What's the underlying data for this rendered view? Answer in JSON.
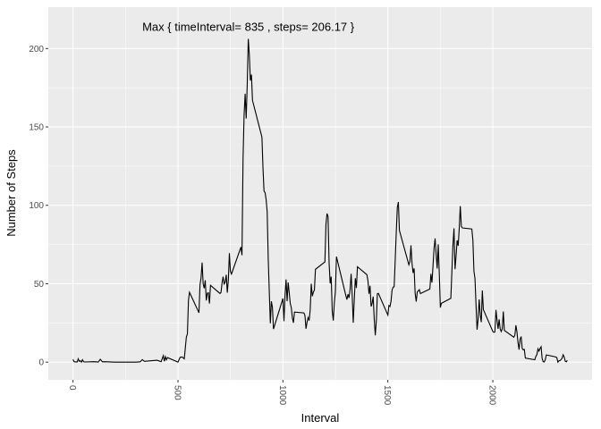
{
  "chart_data": {
    "type": "line",
    "x_label": "Interval",
    "y_label": "Number of Steps",
    "annotation": {
      "text": "Max { timeInterval= 835 , steps= 206.17 }",
      "x": 835,
      "y": 214
    },
    "xlim": [
      -117.75,
      2472.75
    ],
    "ylim": [
      -11.3,
      226.4
    ],
    "xticks": [
      0,
      500,
      1000,
      1500,
      2000
    ],
    "yticks": [
      0,
      50,
      100,
      150,
      200
    ],
    "grid": true,
    "series": [
      {
        "name": "steps",
        "color": "#000000",
        "x": [
          0,
          5,
          10,
          15,
          20,
          25,
          30,
          35,
          40,
          45,
          50,
          55,
          100,
          110,
          120,
          130,
          140,
          150,
          200,
          230,
          300,
          320,
          330,
          340,
          400,
          420,
          430,
          435,
          440,
          445,
          450,
          500,
          510,
          520,
          530,
          540,
          545,
          550,
          555,
          600,
          605,
          610,
          615,
          620,
          625,
          630,
          635,
          640,
          645,
          650,
          655,
          700,
          705,
          710,
          715,
          720,
          725,
          730,
          735,
          740,
          745,
          750,
          755,
          800,
          805,
          810,
          815,
          820,
          825,
          830,
          835,
          840,
          845,
          850,
          855,
          900,
          905,
          910,
          915,
          920,
          925,
          930,
          935,
          940,
          945,
          950,
          955,
          1000,
          1005,
          1010,
          1015,
          1020,
          1025,
          1030,
          1035,
          1040,
          1045,
          1050,
          1055,
          1100,
          1105,
          1110,
          1115,
          1120,
          1125,
          1130,
          1135,
          1140,
          1145,
          1150,
          1155,
          1200,
          1205,
          1210,
          1215,
          1220,
          1225,
          1230,
          1235,
          1240,
          1245,
          1250,
          1255,
          1300,
          1305,
          1310,
          1315,
          1320,
          1325,
          1330,
          1335,
          1340,
          1345,
          1350,
          1355,
          1400,
          1405,
          1410,
          1415,
          1420,
          1425,
          1430,
          1435,
          1440,
          1445,
          1450,
          1455,
          1500,
          1505,
          1510,
          1515,
          1520,
          1525,
          1530,
          1535,
          1540,
          1545,
          1550,
          1555,
          1600,
          1605,
          1610,
          1615,
          1620,
          1625,
          1630,
          1635,
          1640,
          1645,
          1650,
          1655,
          1700,
          1705,
          1710,
          1715,
          1720,
          1725,
          1730,
          1735,
          1740,
          1745,
          1750,
          1755,
          1800,
          1805,
          1810,
          1815,
          1820,
          1825,
          1830,
          1835,
          1840,
          1845,
          1850,
          1855,
          1900,
          1905,
          1910,
          1915,
          1920,
          1925,
          1930,
          1935,
          1940,
          1945,
          1950,
          1955,
          2000,
          2005,
          2010,
          2015,
          2020,
          2025,
          2030,
          2035,
          2040,
          2045,
          2050,
          2055,
          2100,
          2105,
          2110,
          2115,
          2120,
          2125,
          2130,
          2135,
          2140,
          2145,
          2150,
          2155,
          2200,
          2205,
          2210,
          2215,
          2220,
          2225,
          2230,
          2235,
          2240,
          2245,
          2250,
          2255,
          2300,
          2305,
          2310,
          2315,
          2320,
          2325,
          2330,
          2335,
          2340,
          2345,
          2350,
          2355
        ],
        "values": [
          1.7,
          0.3,
          0.1,
          0.2,
          0.1,
          2.1,
          0.5,
          0.9,
          0,
          1.5,
          0.3,
          0.1,
          0.3,
          0.2,
          0,
          1.8,
          0.2,
          0.3,
          0,
          0,
          0,
          0.2,
          1.6,
          0.5,
          1.2,
          0.3,
          4.1,
          0.5,
          3.5,
          1.5,
          2.9,
          0,
          3,
          3.3,
          2.1,
          16,
          18,
          39.5,
          44.5,
          31.5,
          49.3,
          53.8,
          63.5,
          50,
          47.1,
          52.2,
          39.3,
          44,
          44.2,
          37.4,
          49,
          43.8,
          44.4,
          50.5,
          54.5,
          49.9,
          51,
          55.7,
          44.3,
          52.3,
          69.5,
          57.8,
          56.2,
          73.4,
          68.2,
          129.4,
          157.5,
          171.2,
          155.4,
          177.3,
          206.17,
          195.9,
          179.6,
          183.4,
          167,
          143.5,
          124,
          109.1,
          108.1,
          103.7,
          96,
          66.2,
          45.2,
          24.8,
          38.8,
          35,
          21.1,
          40.6,
          26.1,
          42.4,
          52.7,
          38.9,
          50.8,
          44.3,
          37.4,
          34.7,
          28.3,
          25.1,
          31.9,
          31.4,
          29.7,
          21.3,
          25.5,
          28.4,
          26.5,
          33.4,
          50,
          42,
          44.6,
          46,
          59.2,
          63.9,
          87.7,
          94.8,
          92.8,
          63.4,
          50.2,
          54.5,
          32.4,
          26.5,
          37.7,
          45.1,
          67.3,
          42.3,
          39.9,
          43.3,
          41,
          46.2,
          56.4,
          42.8,
          25.1,
          40,
          53.5,
          47.3,
          60.8,
          55.8,
          52,
          43.6,
          48.7,
          35.5,
          37.5,
          41.8,
          27.5,
          17.1,
          26.1,
          43.6,
          43.8,
          30,
          36.1,
          35.5,
          38.8,
          46,
          47.8,
          48.1,
          65.3,
          82.9,
          98.7,
          102.1,
          84,
          62.1,
          64.1,
          74.5,
          63.2,
          56.9,
          59.8,
          43.9,
          38.6,
          44.7,
          45.5,
          46.2,
          43.7,
          46.6,
          56.3,
          50.7,
          61.2,
          72.7,
          78.9,
          68.9,
          59.7,
          75.1,
          56.5,
          34.8,
          37.5,
          40.7,
          58,
          74.7,
          85.3,
          59.3,
          67.8,
          77.7,
          74.2,
          85.3,
          99.5,
          86.6,
          85.6,
          84.9,
          77.8,
          58,
          53.4,
          36.3,
          20.7,
          27.4,
          40,
          30.2,
          25.5,
          45.7,
          33.5,
          19.6,
          19,
          19.3,
          33.3,
          26.8,
          21.2,
          27.3,
          21.3,
          19.5,
          21.3,
          32.3,
          20.2,
          15.9,
          17.2,
          23.5,
          19.2,
          12.5,
          8,
          14.7,
          16.3,
          8.7,
          7.8,
          8.1,
          2.6,
          1.5,
          3.7,
          4.8,
          8.5,
          7.1,
          8.7,
          9.8,
          2.2,
          0.3,
          0.1,
          1.6,
          4.6,
          3.3,
          2.8,
          0,
          0.8,
          1,
          1.6,
          2.6,
          4.7,
          3.3,
          0.6,
          0.2,
          1.1
        ]
      }
    ]
  }
}
